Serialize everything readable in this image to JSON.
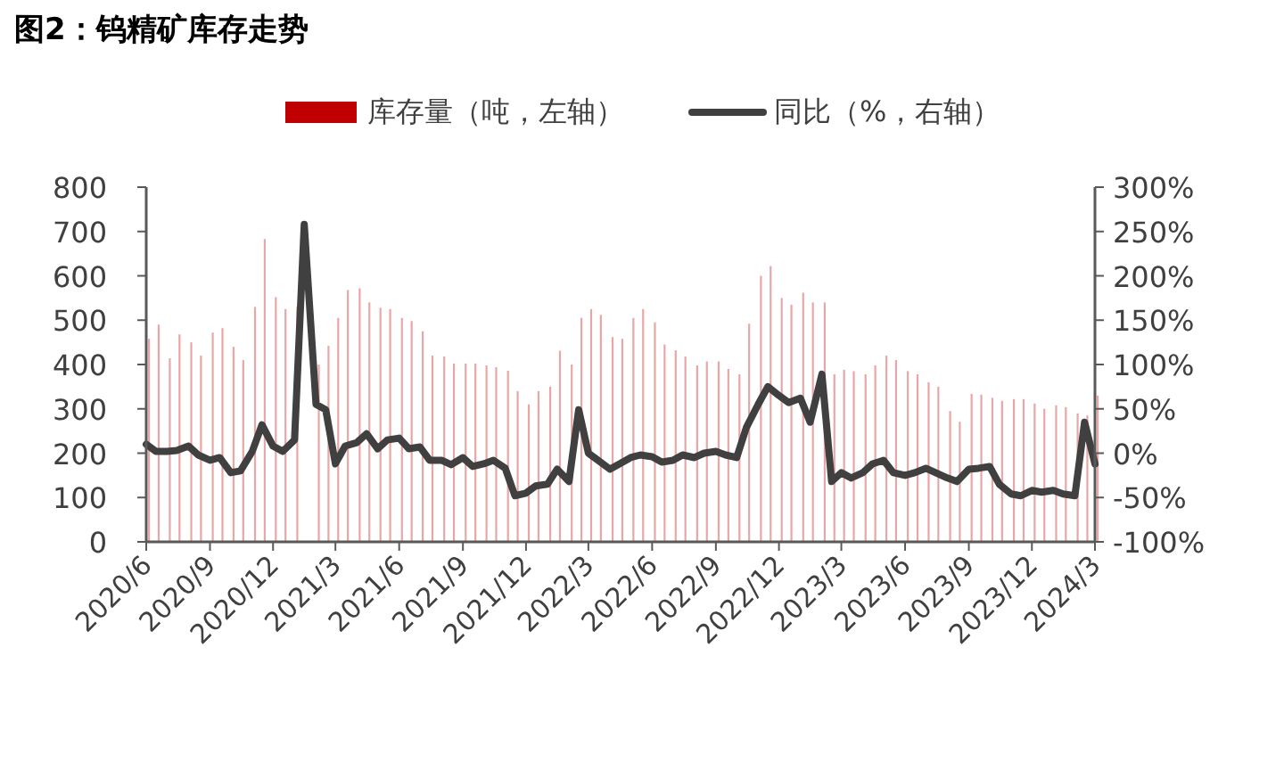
{
  "chart_data": {
    "type": "bar",
    "title": "图2：钨精矿库存走势",
    "x": [
      "2020-06-01",
      "2020-06-15",
      "2020-07-01",
      "2020-07-15",
      "2020-08-01",
      "2020-08-15",
      "2020-09-01",
      "2020-09-15",
      "2020-10-01",
      "2020-10-15",
      "2020-11-01",
      "2020-11-15",
      "2020-12-01",
      "2020-12-15",
      "2021-01-01",
      "2021-01-15",
      "2021-02-01",
      "2021-02-15",
      "2021-03-01",
      "2021-03-15",
      "2021-04-01",
      "2021-04-15",
      "2021-05-01",
      "2021-05-15",
      "2021-06-01",
      "2021-06-15",
      "2021-07-01",
      "2021-07-15",
      "2021-08-01",
      "2021-08-15",
      "2021-09-01",
      "2021-09-15",
      "2021-10-01",
      "2021-10-15",
      "2021-11-01",
      "2021-11-15",
      "2021-12-01",
      "2021-12-15",
      "2022-01-01",
      "2022-01-15",
      "2022-02-01",
      "2022-02-15",
      "2022-03-01",
      "2022-03-15",
      "2022-04-01",
      "2022-04-15",
      "2022-05-01",
      "2022-05-15",
      "2022-06-01",
      "2022-06-15",
      "2022-07-01",
      "2022-07-15",
      "2022-08-01",
      "2022-08-15",
      "2022-09-01",
      "2022-09-15",
      "2022-10-01",
      "2022-10-15",
      "2022-11-01",
      "2022-11-15",
      "2022-12-01",
      "2022-12-15",
      "2023-01-01",
      "2023-01-15",
      "2023-02-01",
      "2023-02-15",
      "2023-03-01",
      "2023-03-15",
      "2023-04-01",
      "2023-04-15",
      "2023-05-01",
      "2023-05-15",
      "2023-06-01",
      "2023-06-15",
      "2023-07-01",
      "2023-07-15",
      "2023-08-01",
      "2023-08-15",
      "2023-09-01",
      "2023-09-15",
      "2023-10-01",
      "2023-10-15",
      "2023-11-01",
      "2023-11-15",
      "2023-12-01",
      "2023-12-15",
      "2024-01-01",
      "2024-01-15",
      "2024-02-01",
      "2024-02-15",
      "2024-03-01"
    ],
    "series": [
      {
        "name": "库存量（吨，左轴）",
        "color": "#c00000",
        "values": [
          458,
          490,
          414,
          468,
          450,
          420,
          472,
          482,
          440,
          410,
          530,
          683,
          552,
          525,
          530,
          null,
          400,
          442,
          505,
          568,
          572,
          540,
          528,
          525,
          505,
          498,
          475,
          420,
          418,
          402,
          402,
          402,
          398,
          394,
          386,
          340,
          310,
          340,
          350,
          431,
          400,
          505,
          525,
          512,
          462,
          458,
          505,
          525,
          495,
          445,
          432,
          418,
          398,
          407,
          407,
          390,
          378,
          492,
          600,
          622,
          550,
          535,
          562,
          540,
          540,
          378,
          388,
          385,
          378,
          398,
          420,
          410,
          385,
          378,
          360,
          350,
          295,
          271,
          334,
          332,
          325,
          318,
          322,
          322,
          312,
          300,
          308,
          304,
          290,
          285,
          330
        ]
      },
      {
        "name": "同比（%，右轴）",
        "type": "line",
        "axis": "y2",
        "color": "#404040",
        "values": [
          10,
          2,
          2,
          3,
          8,
          -2,
          -8,
          -5,
          -22,
          -20,
          2,
          32,
          8,
          2,
          15,
          258,
          55,
          49,
          -12,
          8,
          12,
          22,
          5,
          15,
          17,
          5,
          7,
          -8,
          -8,
          -13,
          -5,
          -15,
          -12,
          -8,
          -17,
          -48,
          -45,
          -37,
          -35,
          -18,
          -32,
          49,
          0,
          -8,
          -18,
          -12,
          -5,
          -2,
          -4,
          -10,
          -8,
          -2,
          -5,
          0,
          2,
          -2,
          -5,
          29,
          55,
          75,
          65,
          57,
          62,
          35,
          89,
          -32,
          -22,
          -28,
          -22,
          -12,
          -8,
          -22,
          -25,
          -22,
          -17,
          -22,
          -28,
          -32,
          -18,
          -17,
          -15,
          -35,
          -46,
          -48,
          -42,
          -44,
          -42,
          -46,
          -48,
          35,
          -12
        ]
      }
    ],
    "xlim": [
      "2020-06-01",
      "2024-03-01"
    ],
    "xticks": [
      {
        "value": "2020-06-01",
        "label": "2020/6"
      },
      {
        "value": "2020-09-01",
        "label": "2020/9"
      },
      {
        "value": "2020-12-01",
        "label": "2020/12"
      },
      {
        "value": "2021-03-01",
        "label": "2021/3"
      },
      {
        "value": "2021-06-01",
        "label": "2021/6"
      },
      {
        "value": "2021-09-01",
        "label": "2021/9"
      },
      {
        "value": "2021-12-01",
        "label": "2021/12"
      },
      {
        "value": "2022-03-01",
        "label": "2022/3"
      },
      {
        "value": "2022-06-01",
        "label": "2022/6"
      },
      {
        "value": "2022-09-01",
        "label": "2022/9"
      },
      {
        "value": "2022-12-01",
        "label": "2022/12"
      },
      {
        "value": "2023-03-01",
        "label": "2023/3"
      },
      {
        "value": "2023-06-01",
        "label": "2023/6"
      },
      {
        "value": "2023-09-01",
        "label": "2023/9"
      },
      {
        "value": "2023-12-01",
        "label": "2023/12"
      },
      {
        "value": "2024-03-01",
        "label": "2024/3"
      }
    ],
    "ylim": [
      0,
      800
    ],
    "yticks": [
      0,
      100,
      200,
      300,
      400,
      500,
      600,
      700,
      800
    ],
    "y2lim": [
      -100,
      300
    ],
    "y2ticks": [
      {
        "value": -100,
        "label": "-100%"
      },
      {
        "value": -50,
        "label": "-50%"
      },
      {
        "value": 0,
        "label": "0%"
      },
      {
        "value": 50,
        "label": "50%"
      },
      {
        "value": 100,
        "label": "100%"
      },
      {
        "value": 150,
        "label": "150%"
      },
      {
        "value": 200,
        "label": "200%"
      },
      {
        "value": 250,
        "label": "250%"
      },
      {
        "value": 300,
        "label": "300%"
      }
    ],
    "legend": "top",
    "grid": false
  }
}
